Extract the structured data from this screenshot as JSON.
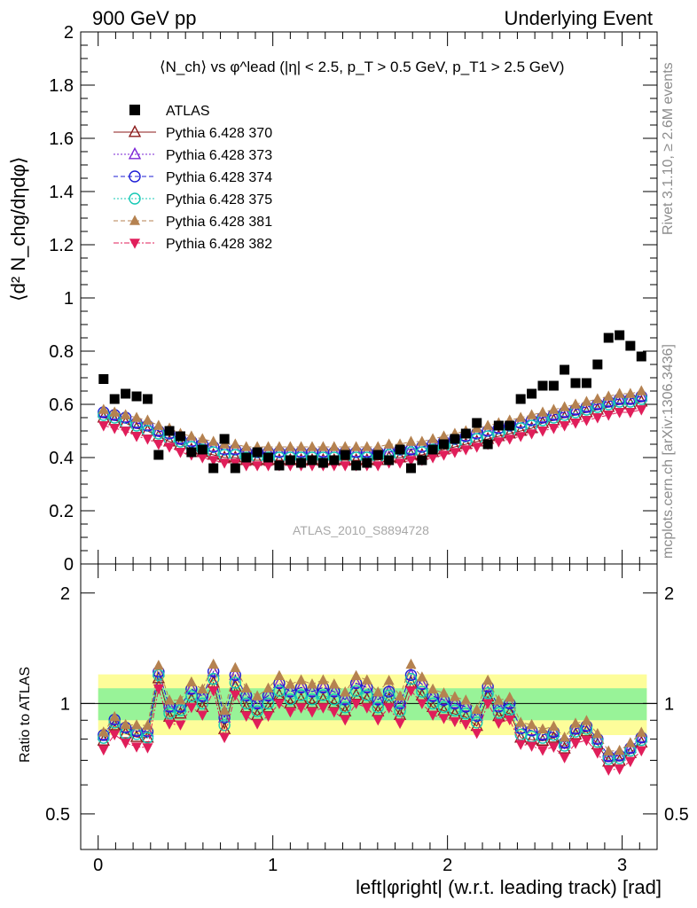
{
  "header": {
    "left": "900 GeV pp",
    "right": "Underlying Event"
  },
  "side_labels": {
    "rivet": "Rivet 3.1.10, ≥ 2.6M events",
    "mcplots": "mcplots.cern.ch [arXiv:1306.3436]"
  },
  "colors": {
    "data": "#000000",
    "band_inner": "#98f398",
    "band_outer": "#fdfd9a"
  },
  "chart_data": [
    {
      "type": "scatter",
      "title": "⟨N_ch⟩ vs φ^lead (|η| < 2.5, p_T > 0.5 GeV, p_T1 > 2.5 GeV)",
      "ylabel": "⟨d² N_chg/dηdφ⟩",
      "ylim": [
        0,
        2
      ],
      "xlim": [
        -0.1,
        3.2
      ],
      "yticks": [
        "0",
        "0.2",
        "0.4",
        "0.6",
        "0.8",
        "1",
        "1.2",
        "1.4",
        "1.6",
        "1.8",
        "2"
      ],
      "watermark": "ATLAS_2010_S8894728",
      "legend_position": "top-left",
      "x": [
        0.031,
        0.094,
        0.157,
        0.22,
        0.283,
        0.346,
        0.408,
        0.471,
        0.534,
        0.597,
        0.66,
        0.723,
        0.785,
        0.848,
        0.911,
        0.974,
        1.037,
        1.1,
        1.162,
        1.225,
        1.288,
        1.351,
        1.414,
        1.477,
        1.539,
        1.602,
        1.665,
        1.728,
        1.791,
        1.854,
        1.916,
        1.979,
        2.042,
        2.105,
        2.168,
        2.231,
        2.293,
        2.356,
        2.419,
        2.482,
        2.545,
        2.608,
        2.67,
        2.733,
        2.796,
        2.859,
        2.922,
        2.985,
        3.047,
        3.11
      ],
      "series": [
        {
          "name": "ATLAS",
          "marker": "filled-square",
          "color": "#000000",
          "values": [
            0.695,
            0.62,
            0.64,
            0.63,
            0.62,
            0.41,
            0.5,
            0.48,
            0.42,
            0.43,
            0.36,
            0.47,
            0.36,
            0.4,
            0.42,
            0.4,
            0.37,
            0.39,
            0.38,
            0.39,
            0.38,
            0.39,
            0.41,
            0.37,
            0.38,
            0.41,
            0.39,
            0.43,
            0.36,
            0.39,
            0.43,
            0.45,
            0.47,
            0.49,
            0.53,
            0.45,
            0.52,
            0.52,
            0.62,
            0.64,
            0.67,
            0.67,
            0.73,
            0.68,
            0.68,
            0.75,
            0.85,
            0.86,
            0.82,
            0.78
          ]
        },
        {
          "name": "Pythia 6.428 370",
          "marker": "open-triangle-up",
          "color": "#8b1a1a",
          "line": "solid",
          "values": [
            0.55,
            0.54,
            0.53,
            0.51,
            0.5,
            0.48,
            0.46,
            0.45,
            0.43,
            0.42,
            0.41,
            0.4,
            0.4,
            0.39,
            0.39,
            0.39,
            0.39,
            0.39,
            0.39,
            0.39,
            0.39,
            0.39,
            0.39,
            0.39,
            0.39,
            0.39,
            0.4,
            0.4,
            0.41,
            0.41,
            0.42,
            0.43,
            0.44,
            0.45,
            0.46,
            0.47,
            0.48,
            0.49,
            0.5,
            0.51,
            0.53,
            0.54,
            0.55,
            0.56,
            0.57,
            0.58,
            0.59,
            0.6,
            0.6,
            0.61
          ]
        },
        {
          "name": "Pythia 6.428 373",
          "marker": "open-triangle-up",
          "color": "#7b24d6",
          "line": "dotted",
          "values": [
            0.57,
            0.56,
            0.55,
            0.53,
            0.52,
            0.5,
            0.49,
            0.47,
            0.46,
            0.45,
            0.44,
            0.43,
            0.43,
            0.42,
            0.42,
            0.42,
            0.42,
            0.42,
            0.42,
            0.42,
            0.42,
            0.42,
            0.42,
            0.42,
            0.42,
            0.42,
            0.42,
            0.43,
            0.43,
            0.44,
            0.45,
            0.46,
            0.47,
            0.48,
            0.49,
            0.5,
            0.51,
            0.52,
            0.53,
            0.54,
            0.55,
            0.56,
            0.57,
            0.58,
            0.59,
            0.6,
            0.61,
            0.62,
            0.62,
            0.63
          ]
        },
        {
          "name": "Pythia 6.428 374",
          "marker": "open-circle",
          "color": "#1c1cd6",
          "line": "dashed",
          "values": [
            0.57,
            0.56,
            0.55,
            0.53,
            0.52,
            0.5,
            0.49,
            0.47,
            0.46,
            0.45,
            0.44,
            0.43,
            0.43,
            0.42,
            0.42,
            0.42,
            0.42,
            0.42,
            0.42,
            0.42,
            0.42,
            0.42,
            0.42,
            0.42,
            0.42,
            0.42,
            0.42,
            0.43,
            0.43,
            0.44,
            0.45,
            0.46,
            0.47,
            0.48,
            0.49,
            0.5,
            0.51,
            0.52,
            0.53,
            0.54,
            0.55,
            0.56,
            0.57,
            0.58,
            0.59,
            0.6,
            0.61,
            0.62,
            0.62,
            0.63
          ]
        },
        {
          "name": "Pythia 6.428 375",
          "marker": "open-circle",
          "color": "#14c8b4",
          "line": "dotted",
          "values": [
            0.56,
            0.55,
            0.53,
            0.52,
            0.5,
            0.49,
            0.47,
            0.46,
            0.44,
            0.43,
            0.42,
            0.41,
            0.41,
            0.4,
            0.4,
            0.4,
            0.4,
            0.4,
            0.4,
            0.4,
            0.4,
            0.4,
            0.4,
            0.4,
            0.4,
            0.4,
            0.41,
            0.41,
            0.42,
            0.42,
            0.43,
            0.44,
            0.45,
            0.46,
            0.47,
            0.48,
            0.49,
            0.5,
            0.51,
            0.52,
            0.54,
            0.55,
            0.56,
            0.57,
            0.58,
            0.59,
            0.6,
            0.61,
            0.61,
            0.62
          ]
        },
        {
          "name": "Pythia 6.428 381",
          "marker": "filled-triangle-up",
          "color": "#b58250",
          "line": "dashed",
          "values": [
            0.58,
            0.57,
            0.56,
            0.55,
            0.54,
            0.52,
            0.51,
            0.49,
            0.48,
            0.47,
            0.46,
            0.45,
            0.45,
            0.44,
            0.44,
            0.44,
            0.44,
            0.44,
            0.44,
            0.44,
            0.44,
            0.44,
            0.44,
            0.44,
            0.44,
            0.44,
            0.45,
            0.45,
            0.46,
            0.46,
            0.47,
            0.48,
            0.49,
            0.5,
            0.51,
            0.52,
            0.53,
            0.54,
            0.55,
            0.56,
            0.57,
            0.58,
            0.59,
            0.6,
            0.61,
            0.62,
            0.63,
            0.64,
            0.64,
            0.65
          ]
        },
        {
          "name": "Pythia 6.428 382",
          "marker": "filled-triangle-down",
          "color": "#e01e5a",
          "line": "dashdot",
          "values": [
            0.52,
            0.51,
            0.5,
            0.48,
            0.47,
            0.45,
            0.44,
            0.42,
            0.41,
            0.4,
            0.39,
            0.38,
            0.38,
            0.37,
            0.37,
            0.37,
            0.37,
            0.37,
            0.37,
            0.37,
            0.37,
            0.37,
            0.37,
            0.37,
            0.37,
            0.37,
            0.38,
            0.38,
            0.39,
            0.39,
            0.4,
            0.41,
            0.42,
            0.43,
            0.44,
            0.45,
            0.46,
            0.47,
            0.48,
            0.49,
            0.5,
            0.51,
            0.52,
            0.53,
            0.54,
            0.55,
            0.56,
            0.57,
            0.57,
            0.58
          ]
        }
      ]
    },
    {
      "type": "scatter",
      "ylabel": "Ratio to ATLAS",
      "xlabel": "left|φright| (w.r.t. leading track) [rad]",
      "xlim": [
        -0.1,
        3.2
      ],
      "ylim": [
        0.4,
        2.4
      ],
      "yscale": "log",
      "yticks": [
        "0.5",
        "1",
        "2"
      ],
      "xticks": [
        "0",
        "1",
        "2",
        "3"
      ],
      "reference_line": 1,
      "band_inner": [
        0.9,
        1.1
      ],
      "band_outer": [
        0.82,
        1.2
      ]
    }
  ]
}
